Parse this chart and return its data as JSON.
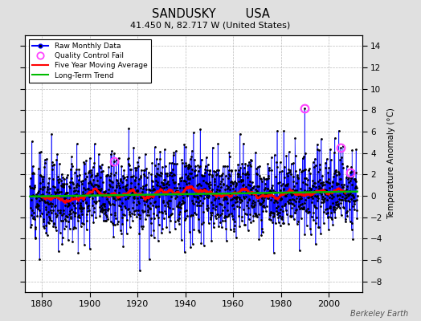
{
  "title_line1": "SANDUSKY        USA",
  "title_line2": "41.450 N, 82.717 W (United States)",
  "ylabel": "Temperature Anomaly (°C)",
  "xlabel_note": "Berkeley Earth",
  "year_start": 1875,
  "year_end": 2012,
  "ylim": [
    -9,
    15
  ],
  "yticks": [
    -8,
    -6,
    -4,
    -2,
    0,
    2,
    4,
    6,
    8,
    10,
    12,
    14
  ],
  "xticks": [
    1880,
    1900,
    1920,
    1940,
    1960,
    1980,
    2000
  ],
  "line_color": "#0000ff",
  "dot_color": "#000000",
  "ma_color": "#ff0000",
  "trend_color": "#00bb00",
  "qc_color": "#ff44ff",
  "bg_color": "#e0e0e0",
  "plot_bg": "#ffffff",
  "seed": 12,
  "num_months": 1644,
  "anomaly_std": 1.9,
  "trend_slope": 0.0015,
  "qc_indices": [
    420,
    1380,
    1560,
    1608
  ],
  "qc_values": [
    3.2,
    8.2,
    4.5,
    2.2
  ]
}
